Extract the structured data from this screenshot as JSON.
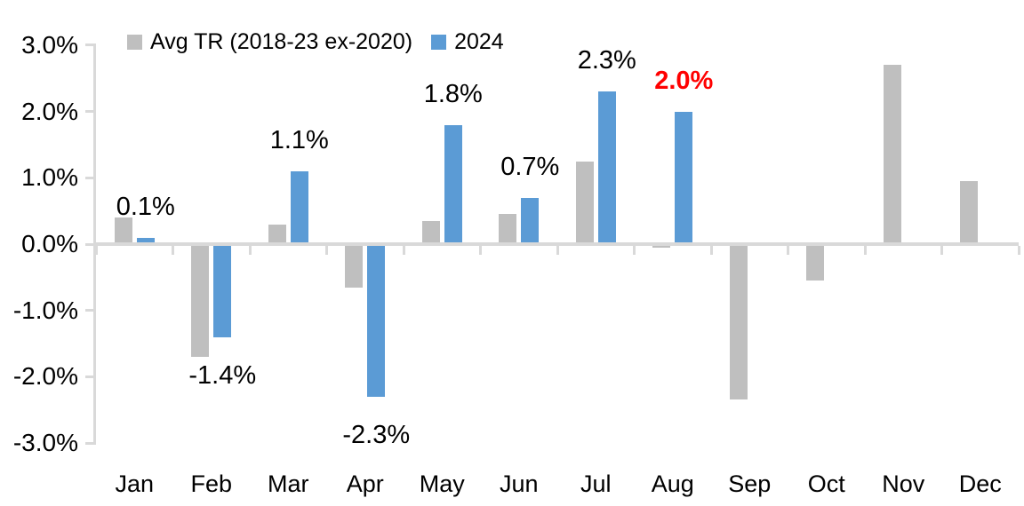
{
  "chart_data": {
    "type": "bar",
    "title": "",
    "categories": [
      "Jan",
      "Feb",
      "Mar",
      "Apr",
      "May",
      "Jun",
      "Jul",
      "Aug",
      "Sep",
      "Oct",
      "Nov",
      "Dec"
    ],
    "series": [
      {
        "name": "Avg TR (2018-23 ex-2020)",
        "color": "#BFBFBF",
        "values": [
          0.4,
          -1.7,
          0.3,
          -0.65,
          0.35,
          0.45,
          1.25,
          -0.05,
          -2.35,
          -0.55,
          2.7,
          0.95
        ],
        "data_labels": [
          null,
          null,
          null,
          null,
          null,
          null,
          null,
          null,
          null,
          null,
          null,
          null
        ]
      },
      {
        "name": "2024",
        "color": "#5B9BD5",
        "values": [
          0.1,
          -1.4,
          1.1,
          -2.3,
          1.8,
          0.7,
          2.3,
          2.0,
          null,
          null,
          null,
          null
        ],
        "data_labels": [
          "0.1%",
          "-1.4%",
          "1.1%",
          "-2.3%",
          "1.8%",
          "0.7%",
          "2.3%",
          "2.0%",
          null,
          null,
          null,
          null
        ],
        "label_styles": [
          null,
          null,
          null,
          null,
          null,
          null,
          null,
          {
            "color": "#FF0000",
            "bold": true
          },
          null,
          null,
          null,
          null
        ]
      }
    ],
    "xlabel": "",
    "ylabel": "",
    "ylim": [
      -3,
      3
    ],
    "ytick_step": 1,
    "ytick_labels": [
      "3.0%",
      "2.0%",
      "1.0%",
      "0.0%",
      "-1.0%",
      "-2.0%",
      "-3.0%"
    ],
    "ytick_values": [
      3,
      2,
      1,
      0,
      -1,
      -2,
      -3
    ],
    "grid": "off",
    "legend_position": "top-left",
    "colors": {
      "axis": "#D9D9D9",
      "text": "#000000",
      "highlight": "#FF0000",
      "background": "#FFFFFF"
    }
  }
}
